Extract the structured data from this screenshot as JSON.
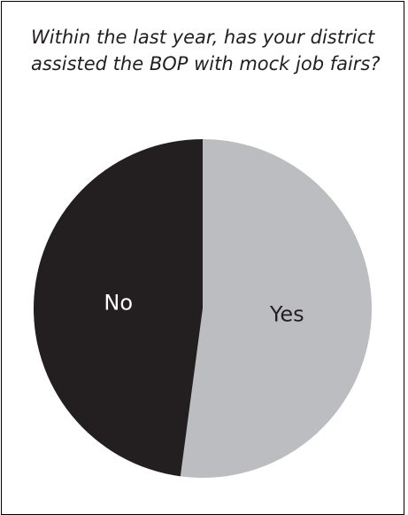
{
  "chart_data": {
    "type": "pie",
    "title": "Within the last year, has your district assisted the BOP with mock job fairs?",
    "slices": [
      {
        "label": "Yes",
        "value": 52.1,
        "color": "#bcbdc0",
        "label_color": "#231f20"
      },
      {
        "label": "No",
        "value": 47.9,
        "color": "#231f20",
        "label_color": "#ffffff"
      }
    ],
    "start_angle_deg": 0,
    "direction": "clockwise",
    "legend": "none"
  }
}
